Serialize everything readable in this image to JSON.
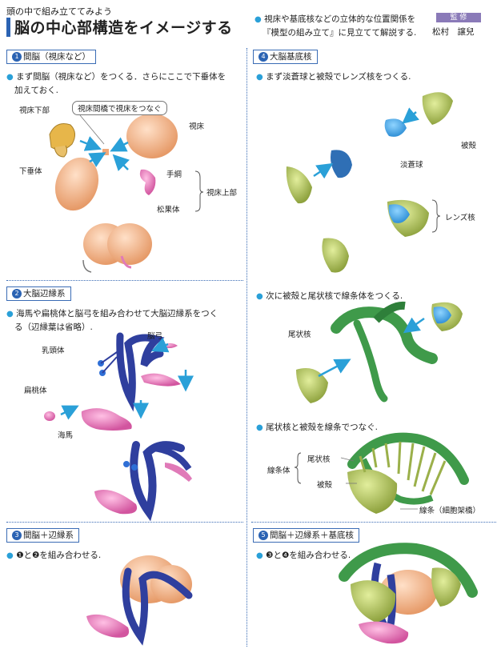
{
  "header": {
    "kicker": "頭の中で組み立ててみよう",
    "title": "脳の中心部構造をイメージする",
    "intro_line1": "視床や基底核などの立体的な位置関係を",
    "intro_line2": "『模型の組み立て』に見立てて解説する.",
    "supervisor_tag": "監 修",
    "supervisor_name": "松村　譲兒"
  },
  "sections": {
    "s1": {
      "num": "1",
      "title": "間脳（視床など）",
      "desc_line1": "まず間脳（視床など）をつくる．さらにここで下垂体を",
      "desc_line2": "加えておく.",
      "labels": {
        "hypothalamus": "視床下部",
        "connect_box": "視床間橋で視床をつなぐ",
        "thalamus": "視床",
        "pituitary": "下垂体",
        "habenula": "手綱",
        "epithalamus": "視床上部",
        "pineal": "松果体"
      }
    },
    "s2": {
      "num": "2",
      "title": "大脳辺縁系",
      "desc_line1": "海馬や扁桃体と脳弓を組み合わせて大脳辺縁系をつく",
      "desc_line2": "る（辺縁葉は省略）.",
      "labels": {
        "fornix": "脳弓",
        "mammillary": "乳頭体",
        "amygdala": "扁桃体",
        "hippocampus": "海馬"
      }
    },
    "s3": {
      "num": "3",
      "title": "間脳＋辺縁系",
      "desc": "❶と❷を組み合わせる."
    },
    "s4": {
      "num": "4",
      "title": "大脳基底核",
      "desc1": "まず淡蒼球と被殻でレンズ核をつくる.",
      "desc2": "次に被殻と尾状核で線条体をつくる.",
      "desc3": "尾状核と被殻を線条でつなぐ.",
      "labels": {
        "putamen": "被殻",
        "globus_pallidus": "淡蒼球",
        "lentiform": "レンズ核",
        "caudate": "尾状核",
        "striatum": "線条体",
        "caudate2": "尾状核",
        "putamen2": "被殻",
        "striae": "線条（細胞架橋）"
      }
    },
    "s5": {
      "num": "5",
      "title": "間脳＋辺縁系＋基底核",
      "desc": "❸と❹を組み合わせる."
    }
  },
  "colors": {
    "accent_blue": "#2b63b3",
    "arrow_cyan": "#2aa0d8",
    "thalamus_orange": "#f2b48a",
    "limbic_navy": "#2f3f9e",
    "limbic_pink": "#e07ab8",
    "basal_green": "#3f9a4a",
    "putamen_olive": "#9bb04a",
    "pallidus_blue": "#3aa0e0"
  }
}
